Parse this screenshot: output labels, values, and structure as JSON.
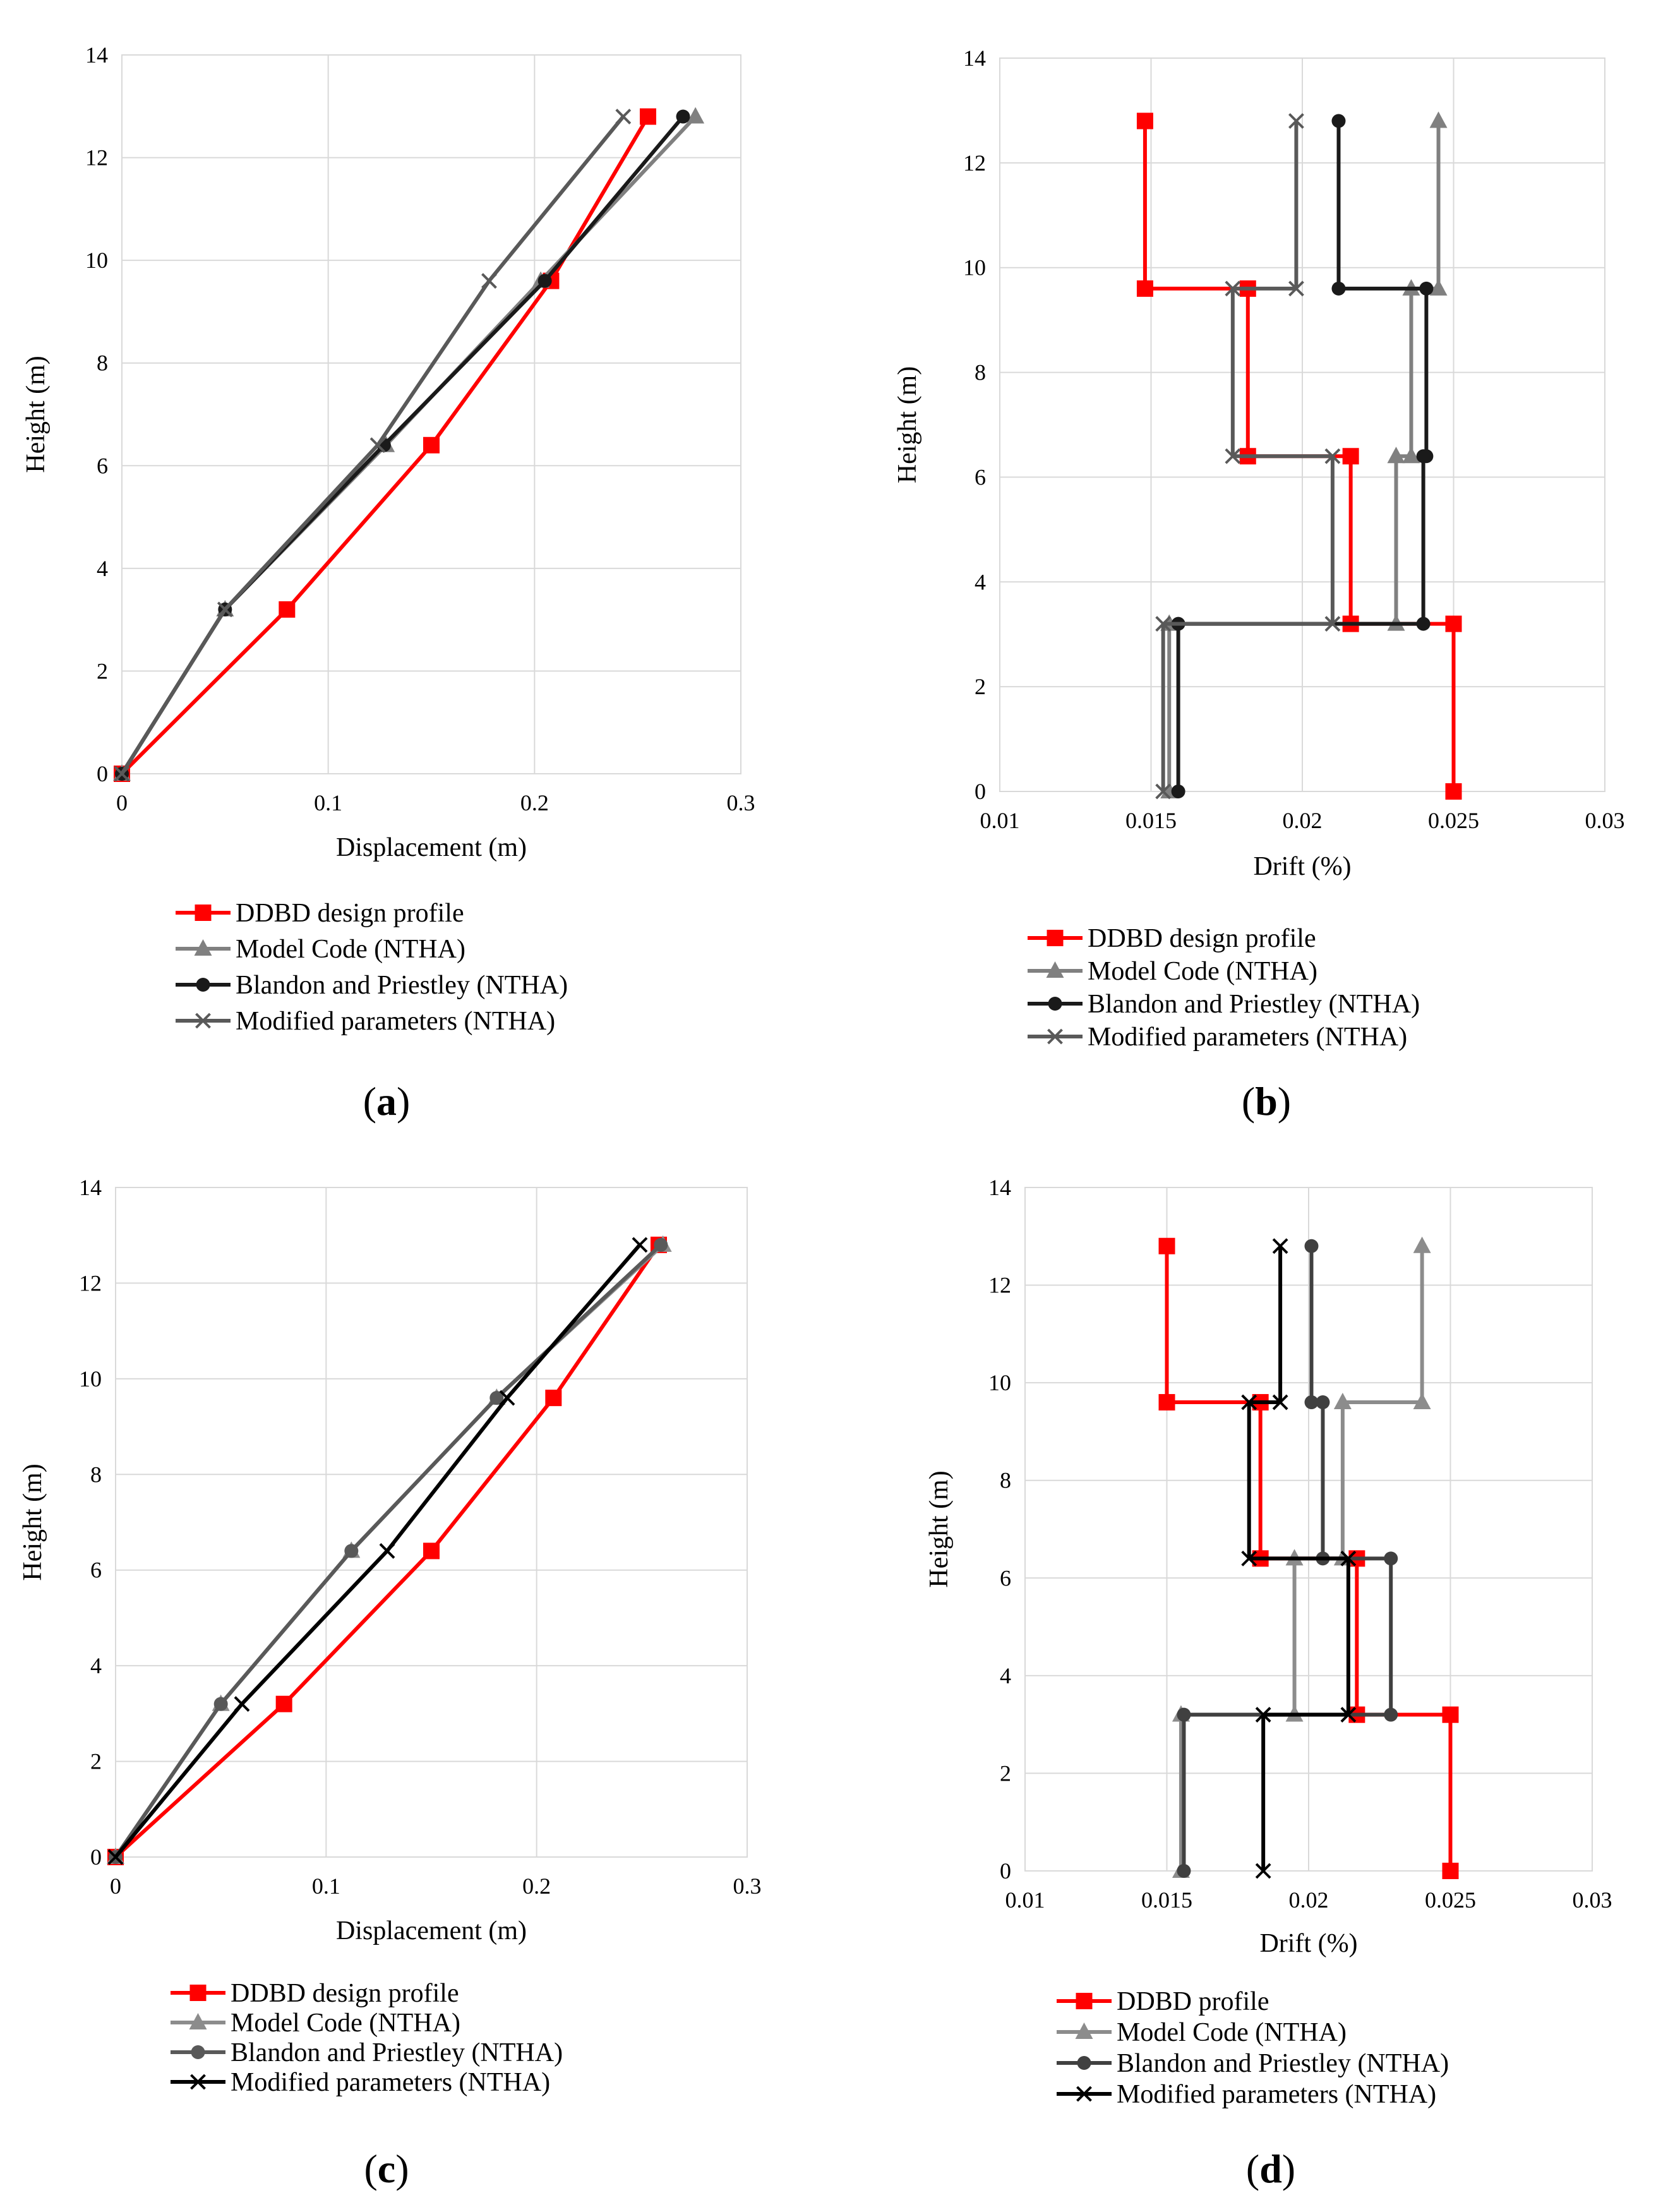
{
  "chart_data": [
    {
      "panel_label": "(a)",
      "panel_letter": "a",
      "type": "line",
      "xlabel": "Displacement (m)",
      "ylabel": "Height (m)",
      "xlim": [
        0,
        0.3
      ],
      "ylim": [
        0,
        14
      ],
      "xticks": [
        0,
        0.1,
        0.2,
        0.3
      ],
      "xtick_labels": [
        "0",
        "0.1",
        "0.2",
        "0.3"
      ],
      "yticks": [
        0,
        2,
        4,
        6,
        8,
        10,
        12,
        14
      ],
      "ytick_labels": [
        "0",
        "2",
        "4",
        "6",
        "8",
        "10",
        "12",
        "14"
      ],
      "grid": true,
      "legend_position": "bottom",
      "series": [
        {
          "name": "DDBD design profile",
          "color": "#ff0000",
          "marker": "square",
          "x": [
            0,
            0.08,
            0.15,
            0.208,
            0.255
          ],
          "y": [
            0,
            3.2,
            6.4,
            9.6,
            12.8
          ]
        },
        {
          "name": "Model Code (NTHA)",
          "color": "#808080",
          "marker": "triangle",
          "x": [
            0,
            0.05,
            0.128,
            0.203,
            0.278
          ],
          "y": [
            0,
            3.2,
            6.4,
            9.6,
            12.8
          ]
        },
        {
          "name": "Blandon and Priestley (NTHA)",
          "color": "#1a1a1a",
          "marker": "circle",
          "x": [
            0,
            0.05,
            0.127,
            0.205,
            0.272
          ],
          "y": [
            0,
            3.2,
            6.4,
            9.6,
            12.8
          ]
        },
        {
          "name": "Modified parameters (NTHA)",
          "color": "#595959",
          "marker": "x",
          "x": [
            0,
            0.05,
            0.124,
            0.178,
            0.243
          ],
          "y": [
            0,
            3.2,
            6.4,
            9.6,
            12.8
          ]
        }
      ]
    },
    {
      "panel_label": "(b)",
      "panel_letter": "b",
      "type": "line",
      "xlabel": "Drift (%)",
      "ylabel": "Height (m)",
      "xlim": [
        0.01,
        0.03
      ],
      "ylim": [
        0,
        14
      ],
      "xticks": [
        0.01,
        0.015,
        0.02,
        0.025,
        0.03
      ],
      "xtick_labels": [
        "0.01",
        "0.015",
        "0.02",
        "0.025",
        "0.03"
      ],
      "yticks": [
        0,
        2,
        4,
        6,
        8,
        10,
        12,
        14
      ],
      "ytick_labels": [
        "0",
        "2",
        "4",
        "6",
        "8",
        "10",
        "12",
        "14"
      ],
      "grid": true,
      "legend_position": "bottom",
      "series": [
        {
          "name": "DDBD design profile",
          "color": "#ff0000",
          "marker": "square",
          "x": [
            0.025,
            0.025,
            0.0216,
            0.0216,
            0.0182,
            0.0182,
            0.0148,
            0.0148
          ],
          "y": [
            0,
            3.2,
            3.2,
            6.4,
            6.4,
            9.6,
            9.6,
            12.8
          ]
        },
        {
          "name": "Model Code (NTHA)",
          "color": "#808080",
          "marker": "triangle",
          "x": [
            0.0156,
            0.0156,
            0.0231,
            0.0231,
            0.0236,
            0.0236,
            0.0245,
            0.0245
          ],
          "y": [
            0,
            3.2,
            3.2,
            6.4,
            6.4,
            9.6,
            9.6,
            12.8
          ]
        },
        {
          "name": "Blandon and Priestley (NTHA)",
          "color": "#1a1a1a",
          "marker": "circle",
          "x": [
            0.0159,
            0.0159,
            0.024,
            0.024,
            0.0241,
            0.0241,
            0.0212,
            0.0212
          ],
          "y": [
            0,
            3.2,
            3.2,
            6.4,
            6.4,
            9.6,
            9.6,
            12.8
          ]
        },
        {
          "name": "Modified parameters (NTHA)",
          "color": "#595959",
          "marker": "x",
          "x": [
            0.0154,
            0.0154,
            0.021,
            0.021,
            0.0177,
            0.0177,
            0.0198,
            0.0198
          ],
          "y": [
            0,
            3.2,
            3.2,
            6.4,
            6.4,
            9.6,
            9.6,
            12.8
          ]
        }
      ]
    },
    {
      "panel_label": "(c)",
      "panel_letter": "c",
      "type": "line",
      "xlabel": "Displacement (m)",
      "ylabel": "Height (m)",
      "xlim": [
        0,
        0.3
      ],
      "ylim": [
        0,
        14
      ],
      "xticks": [
        0,
        0.1,
        0.2,
        0.3
      ],
      "xtick_labels": [
        "0",
        "0.1",
        "0.2",
        "0.3"
      ],
      "yticks": [
        0,
        2,
        4,
        6,
        8,
        10,
        12,
        14
      ],
      "ytick_labels": [
        "0",
        "2",
        "4",
        "6",
        "8",
        "10",
        "12",
        "14"
      ],
      "grid": true,
      "legend_position": "bottom",
      "series": [
        {
          "name": "DDBD design profile",
          "color": "#ff0000",
          "marker": "square",
          "x": [
            0,
            0.08,
            0.15,
            0.208,
            0.258
          ],
          "y": [
            0,
            3.2,
            6.4,
            9.6,
            12.8
          ]
        },
        {
          "name": "Model Code (NTHA)",
          "color": "#8c8c8c",
          "marker": "triangle",
          "x": [
            0,
            0.05,
            0.112,
            0.181,
            0.26
          ],
          "y": [
            0,
            3.2,
            6.4,
            9.6,
            12.8
          ]
        },
        {
          "name": "Blandon and Priestley (NTHA)",
          "color": "#595959",
          "marker": "circle",
          "x": [
            0,
            0.05,
            0.112,
            0.181,
            0.259
          ],
          "y": [
            0,
            3.2,
            6.4,
            9.6,
            12.8
          ]
        },
        {
          "name": "Modified parameters (NTHA)",
          "color": "#000000",
          "marker": "x",
          "x": [
            0,
            0.06,
            0.129,
            0.186,
            0.249
          ],
          "y": [
            0,
            3.2,
            6.4,
            9.6,
            12.8
          ]
        }
      ]
    },
    {
      "panel_label": "(d)",
      "panel_letter": "d",
      "type": "line",
      "xlabel": "Drift (%)",
      "ylabel": "Height (m)",
      "xlim": [
        0.01,
        0.03
      ],
      "ylim": [
        0,
        14
      ],
      "xticks": [
        0.01,
        0.015,
        0.02,
        0.025,
        0.03
      ],
      "xtick_labels": [
        "0.01",
        "0.015",
        "0.02",
        "0.025",
        "0.03"
      ],
      "yticks": [
        0,
        2,
        4,
        6,
        8,
        10,
        12,
        14
      ],
      "ytick_labels": [
        "0",
        "2",
        "4",
        "6",
        "8",
        "10",
        "12",
        "14"
      ],
      "grid": true,
      "legend_position": "bottom",
      "series": [
        {
          "name": "DDBD profile",
          "color": "#ff0000",
          "marker": "square",
          "x": [
            0.025,
            0.025,
            0.0217,
            0.0217,
            0.0183,
            0.0183,
            0.015,
            0.015
          ],
          "y": [
            0,
            3.2,
            3.2,
            6.4,
            6.4,
            9.6,
            9.6,
            12.8
          ]
        },
        {
          "name": "Model Code (NTHA)",
          "color": "#8c8c8c",
          "marker": "triangle",
          "x": [
            0.0155,
            0.0155,
            0.0195,
            0.0195,
            0.0212,
            0.0212,
            0.024,
            0.024
          ],
          "y": [
            0,
            3.2,
            3.2,
            6.4,
            6.4,
            9.6,
            9.6,
            12.8
          ]
        },
        {
          "name": "Blandon and Priestley (NTHA)",
          "color": "#404040",
          "marker": "circle",
          "x": [
            0.0156,
            0.0156,
            0.0229,
            0.0229,
            0.0205,
            0.0205,
            0.0201,
            0.0201
          ],
          "y": [
            0,
            3.2,
            3.2,
            6.4,
            6.4,
            9.6,
            9.6,
            12.8
          ]
        },
        {
          "name": "Modified parameters (NTHA)",
          "color": "#000000",
          "marker": "x",
          "x": [
            0.0184,
            0.0184,
            0.0214,
            0.0214,
            0.0179,
            0.0179,
            0.019,
            0.019
          ],
          "y": [
            0,
            3.2,
            3.2,
            6.4,
            6.4,
            9.6,
            9.6,
            12.8
          ]
        }
      ]
    }
  ]
}
